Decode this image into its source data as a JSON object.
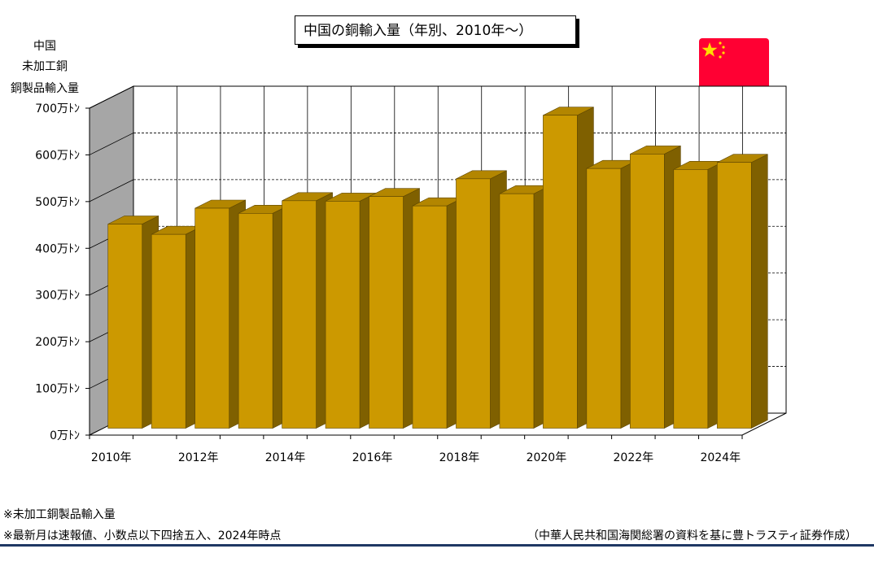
{
  "title": "中国の銅輸入量（年別、2010年～）",
  "y_axis_title": [
    "中国",
    "未加工銅",
    "銅製品輸入量"
  ],
  "notes": [
    "※未加工銅製品輸入量",
    "※最新月は速報値、小数点以下四捨五入、2024年時点"
  ],
  "source": "（中華人民共和国海関総署の資料を基に豊トラスティ証券作成）",
  "colors": {
    "bar_front": "#cc9900",
    "bar_top": "#b38600",
    "bar_side": "#7f6000",
    "wall": "#a6a6a6",
    "navy_rule": "#1f3864",
    "flag_red": "#ff0033",
    "flag_star": "#ffdd00"
  },
  "flag_icon": "china-flag-icon",
  "chart_data": {
    "type": "bar",
    "categories": [
      "2010年",
      "2011年",
      "2012年",
      "2013年",
      "2014年",
      "2015年",
      "2016年",
      "2017年",
      "2018年",
      "2019年",
      "2020年",
      "2021年",
      "2022年",
      "2023年",
      "2024年"
    ],
    "values": [
      4370000,
      4150000,
      4710000,
      4600000,
      4870000,
      4860000,
      4960000,
      4760000,
      5340000,
      5020000,
      6700000,
      5560000,
      5870000,
      5540000,
      5690000
    ],
    "x_tick_labels": [
      "2010年",
      "",
      "2012年",
      "",
      "2014年",
      "",
      "2016年",
      "",
      "2018年",
      "",
      "2020年",
      "",
      "2022年",
      "",
      "2024年"
    ],
    "y_tick_labels": [
      "0万ﾄﾝ",
      "100万ﾄﾝ",
      "200万ﾄﾝ",
      "300万ﾄﾝ",
      "400万ﾄﾝ",
      "500万ﾄﾝ",
      "600万ﾄﾝ",
      "700万ﾄﾝ"
    ],
    "ylim": [
      0,
      7000000
    ],
    "grid": true,
    "style": "3d"
  }
}
